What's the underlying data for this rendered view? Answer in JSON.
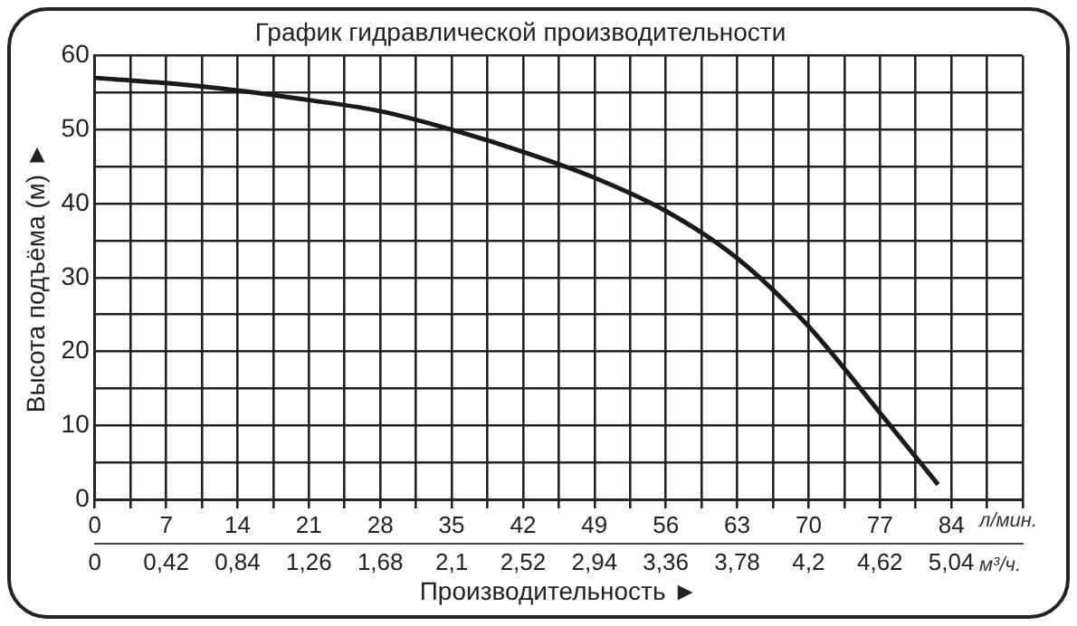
{
  "chart_data": {
    "type": "line",
    "title": "График гидравлической производительности",
    "xlabel": "Производительность ►",
    "ylabel": "Высота подъёма (м) ►",
    "x": [
      0,
      7,
      14,
      21,
      28,
      35,
      42,
      49,
      56,
      63,
      70,
      77,
      82.7
    ],
    "series": [
      {
        "color": "#1a1a1a",
        "values": [
          57,
          56.3,
          55.3,
          54,
          52.5,
          50,
          47,
          43.5,
          39,
          32.6,
          23.4,
          11.7,
          2
        ]
      }
    ],
    "xlim": [
      0,
      91
    ],
    "ylim": [
      0,
      60
    ],
    "xticks": [
      0,
      {
        "value": 3.5,
        "label": null
      },
      7,
      {
        "value": 10.5,
        "label": null
      },
      14,
      {
        "value": 17.5,
        "label": null
      },
      21,
      {
        "value": 24.5,
        "label": null
      },
      28,
      {
        "value": 31.5,
        "label": null
      },
      35,
      {
        "value": 38.5,
        "label": null
      },
      42,
      {
        "value": 45.5,
        "label": null
      },
      49,
      {
        "value": 52.5,
        "label": null
      },
      56,
      {
        "value": 59.5,
        "label": null
      },
      63,
      {
        "value": 66.5,
        "label": null
      },
      70,
      {
        "value": 73.5,
        "label": null
      },
      77,
      {
        "value": 80.5,
        "label": null
      },
      84,
      {
        "value": 87.5,
        "label": null
      },
      {
        "value": 91,
        "label": null
      }
    ],
    "x2lim": [
      0,
      5.46
    ],
    "x2ticks": [
      {
        "value": 0,
        "label": "0"
      },
      {
        "value": 0.42,
        "label": "0,42"
      },
      {
        "value": 0.84,
        "label": "0,84"
      },
      {
        "value": 1.26,
        "label": "1,26"
      },
      {
        "value": 1.68,
        "label": "1,68"
      },
      {
        "value": 2.1,
        "label": "2,1"
      },
      {
        "value": 2.52,
        "label": "2,52"
      },
      {
        "value": 2.94,
        "label": "2,94"
      },
      {
        "value": 3.36,
        "label": "3,36"
      },
      {
        "value": 3.78,
        "label": "3,78"
      },
      {
        "value": 4.2,
        "label": "4,2"
      },
      {
        "value": 4.62,
        "label": "4,62"
      },
      {
        "value": 5.04,
        "label": "5,04"
      }
    ],
    "yticks": [
      0,
      {
        "value": 5,
        "label": null
      },
      10,
      {
        "value": 15,
        "label": null
      },
      20,
      {
        "value": 25,
        "label": null
      },
      30,
      {
        "value": 35,
        "label": null
      },
      40,
      {
        "value": 45,
        "label": null
      },
      50,
      {
        "value": 55,
        "label": null
      },
      60
    ],
    "grid": true,
    "marker": "none",
    "line_style": "solid",
    "legend": false,
    "annotations": [
      "л/мин.",
      "м³/ч."
    ]
  }
}
